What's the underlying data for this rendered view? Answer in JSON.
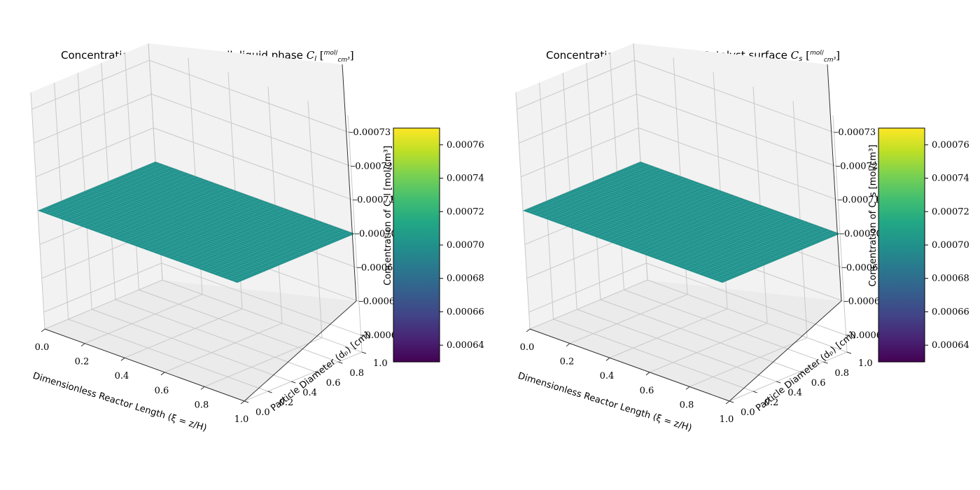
{
  "chart_data": [
    {
      "type": "surface",
      "title": "Concentration of Benzene in bulk liquid phase",
      "title_symbol": "C",
      "title_symbol_sub": "l",
      "title_units_num": "mol",
      "title_units_den": "cm³",
      "xlabel": "Dimensionless Reactor Length (ξ = z/H)",
      "ylabel": "Particle Diameter (dₚ) [cm]",
      "zlabel": "Concentration of C_l [mol/cm³]",
      "x_ticks": [
        "0.0",
        "0.2",
        "0.4",
        "0.6",
        "0.8",
        "1.0"
      ],
      "y_ticks": [
        "0.0",
        "0.2",
        "0.4",
        "0.6",
        "0.8",
        "1.0"
      ],
      "z_ticks": [
        "0.00067",
        "0.00068",
        "0.00069",
        "0.00070",
        "0.00071",
        "0.00072",
        "0.00073"
      ],
      "x_range": [
        0,
        1
      ],
      "y_range": [
        0,
        1
      ],
      "zlim": [
        0.000665,
        0.000735
      ],
      "surface_value": 0.0007,
      "surface_color": "#21918c",
      "colorbar": {
        "ticks": [
          "0.00064",
          "0.00066",
          "0.00068",
          "0.00070",
          "0.00072",
          "0.00074",
          "0.00076"
        ],
        "range": [
          0.00063,
          0.00077
        ],
        "colormap": "viridis"
      },
      "grid": true
    },
    {
      "type": "surface",
      "title": "Concentration of Benzene on Catalyst surface",
      "title_symbol": "C",
      "title_symbol_sub": "s",
      "title_units_num": "mol",
      "title_units_den": "cm³",
      "xlabel": "Dimensionless Reactor Length (ξ = z/H)",
      "ylabel": "Particle Diameter (dₚ) [cm]",
      "zlabel": "Concentration of C_s [mol/cm³]",
      "x_ticks": [
        "0.0",
        "0.2",
        "0.4",
        "0.6",
        "0.8",
        "1.0"
      ],
      "y_ticks": [
        "0.0",
        "0.2",
        "0.4",
        "0.6",
        "0.8",
        "1.0"
      ],
      "z_ticks": [
        "0.00067",
        "0.00068",
        "0.00069",
        "0.00070",
        "0.00071",
        "0.00072",
        "0.00073"
      ],
      "x_range": [
        0,
        1
      ],
      "y_range": [
        0,
        1
      ],
      "zlim": [
        0.000665,
        0.000735
      ],
      "surface_value": 0.0007,
      "surface_color": "#21918c",
      "colorbar": {
        "ticks": [
          "0.00064",
          "0.00066",
          "0.00068",
          "0.00070",
          "0.00072",
          "0.00074",
          "0.00076"
        ],
        "range": [
          0.00063,
          0.00077
        ],
        "colormap": "viridis"
      },
      "grid": true
    }
  ]
}
